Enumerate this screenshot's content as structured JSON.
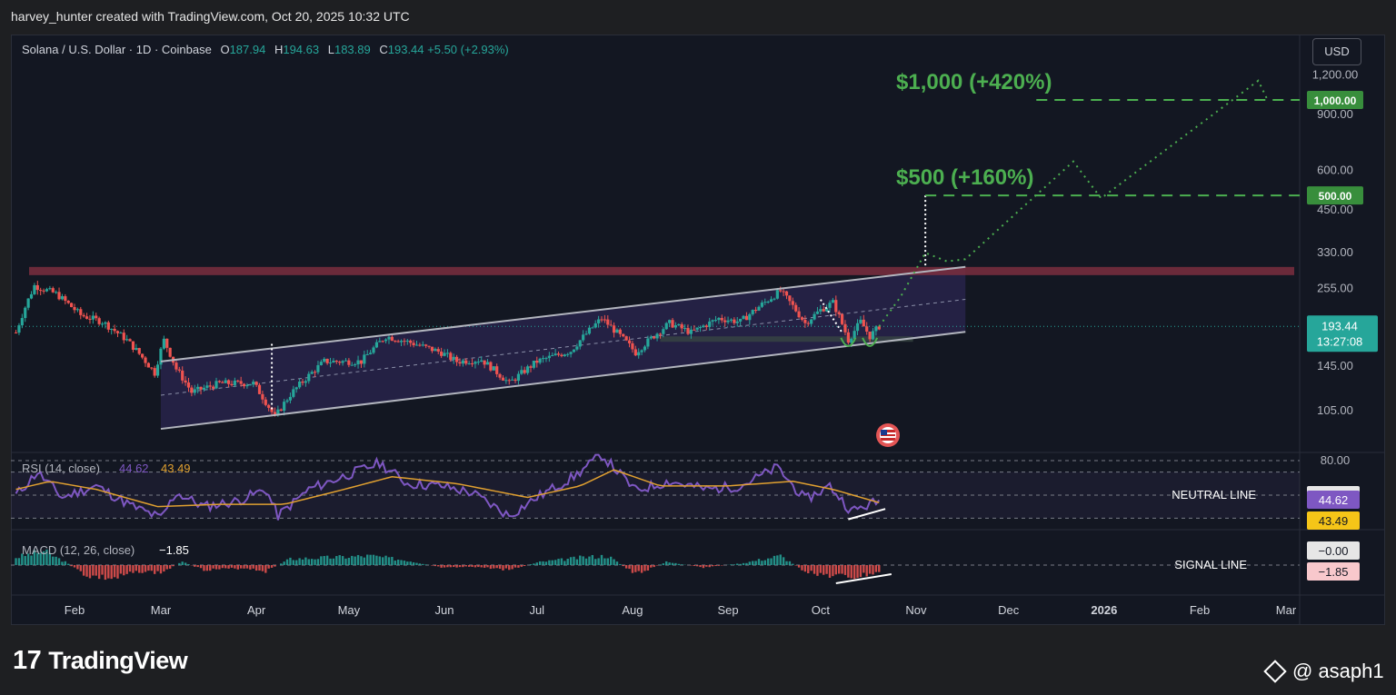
{
  "header": {
    "attribution": "harvey_hunter created with TradingView.com, Oct 20, 2025 10:32 UTC"
  },
  "symbol": {
    "name": "Solana / U.S. Dollar · 1D · Coinbase",
    "open_label": "O",
    "open": "187.94",
    "high_label": "H",
    "high": "194.63",
    "low_label": "L",
    "low": "183.89",
    "close_label": "C",
    "close": "193.44",
    "change": "+5.50 (+2.93%)"
  },
  "currency_button": "USD",
  "footer": {
    "logo_text": "TradingView",
    "logo_mark": "17",
    "watermark": "@ asaph1"
  },
  "colors": {
    "background": "#131722",
    "bull": "#26a69a",
    "bear": "#ef5350",
    "target": "#4caf50",
    "channel_fill": "#2b2650",
    "resistance": "#7b2e3e",
    "rsi": "#7e57c2",
    "rsi_ma": "#e0a030"
  },
  "icons": {
    "us_flag_badge": "flag-icon"
  },
  "chart_data": [
    {
      "type": "candlestick",
      "title": "",
      "price_axis": {
        "scale": "log",
        "ticks": [
          "1,200.00",
          "900.00",
          "600.00",
          "450.00",
          "330.00",
          "255.00",
          "145.00",
          "105.00"
        ],
        "tick_values": [
          1200,
          900,
          600,
          450,
          330,
          255,
          145,
          105
        ]
      },
      "time_axis": {
        "ticks": [
          "Feb",
          "Mar",
          "Apr",
          "May",
          "Jun",
          "Jul",
          "Aug",
          "Sep",
          "Oct",
          "Nov",
          "Dec",
          "2026",
          "Feb",
          "Mar"
        ],
        "tick_dates": [
          "2025-02-01",
          "2025-03-01",
          "2025-04-01",
          "2025-05-01",
          "2025-06-01",
          "2025-07-01",
          "2025-08-01",
          "2025-09-01",
          "2025-10-01",
          "2025-11-01",
          "2025-12-01",
          "2026-01-01",
          "2026-02-01",
          "2026-03-01"
        ]
      },
      "price_path": [
        [
          "2025-01-13",
          185
        ],
        [
          "2025-01-19",
          260
        ],
        [
          "2025-01-26",
          245
        ],
        [
          "2025-02-03",
          210
        ],
        [
          "2025-02-10",
          200
        ],
        [
          "2025-02-18",
          175
        ],
        [
          "2025-02-27",
          138
        ],
        [
          "2025-03-02",
          175
        ],
        [
          "2025-03-06",
          142
        ],
        [
          "2025-03-11",
          120
        ],
        [
          "2025-03-20",
          128
        ],
        [
          "2025-03-31",
          128
        ],
        [
          "2025-04-07",
          100
        ],
        [
          "2025-04-12",
          118
        ],
        [
          "2025-04-23",
          150
        ],
        [
          "2025-05-05",
          150
        ],
        [
          "2025-05-13",
          180
        ],
        [
          "2025-05-21",
          172
        ],
        [
          "2025-05-31",
          160
        ],
        [
          "2025-06-05",
          150
        ],
        [
          "2025-06-13",
          152
        ],
        [
          "2025-06-22",
          128
        ],
        [
          "2025-07-01",
          150
        ],
        [
          "2025-07-12",
          162
        ],
        [
          "2025-07-22",
          205
        ],
        [
          "2025-08-02",
          160
        ],
        [
          "2025-08-13",
          198
        ],
        [
          "2025-08-20",
          185
        ],
        [
          "2025-08-29",
          205
        ],
        [
          "2025-09-05",
          200
        ],
        [
          "2025-09-18",
          250
        ],
        [
          "2025-09-26",
          198
        ],
        [
          "2025-10-01",
          218
        ],
        [
          "2025-10-05",
          230
        ],
        [
          "2025-10-10",
          175
        ],
        [
          "2025-10-14",
          200
        ],
        [
          "2025-10-17",
          180
        ],
        [
          "2025-10-20",
          193.44
        ]
      ],
      "last_price": "193.44",
      "countdown": "13:27:08",
      "projection": [
        [
          "2025-10-20",
          193.44
        ],
        [
          "2025-10-27",
          240
        ],
        [
          "2025-11-04",
          330
        ],
        [
          "2025-11-11",
          310
        ],
        [
          "2025-11-17",
          315
        ],
        [
          "2025-12-22",
          640
        ],
        [
          "2025-12-31",
          490
        ],
        [
          "2026-02-20",
          1150
        ],
        [
          "2026-02-23",
          1000
        ]
      ],
      "target_1": {
        "price": 500,
        "label": "$500 (+160%)",
        "axis_label": "500.00"
      },
      "target_2": {
        "price": 1000,
        "label": "$1,000 (+420%)",
        "axis_label": "1,000.00"
      },
      "resistance_price": 290,
      "channel": {
        "upper": [
          [
            "2025-03-01",
            150
          ],
          [
            "2025-11-17",
            298
          ]
        ],
        "lower": [
          [
            "2025-03-01",
            92
          ],
          [
            "2025-11-17",
            186
          ]
        ]
      },
      "support_zone": {
        "from": "2025-08-10",
        "to": "2025-10-31",
        "low": 173,
        "high": 180
      }
    },
    {
      "type": "line",
      "title": "",
      "indicator": "RSI",
      "params": "(14, close)",
      "rsi_value": "44.62",
      "ma_value": "43.49",
      "levels": [
        "80.00",
        "50.00"
      ],
      "level_values": [
        80,
        70,
        50,
        30
      ],
      "neutral_line_label": "NEUTRAL LINE",
      "rsi_path": [
        [
          "2025-01-13",
          50
        ],
        [
          "2025-01-20",
          70
        ],
        [
          "2025-01-28",
          48
        ],
        [
          "2025-02-08",
          58
        ],
        [
          "2025-02-20",
          40
        ],
        [
          "2025-03-01",
          30
        ],
        [
          "2025-03-06",
          52
        ],
        [
          "2025-03-15",
          40
        ],
        [
          "2025-03-26",
          45
        ],
        [
          "2025-04-04",
          55
        ],
        [
          "2025-04-08",
          32
        ],
        [
          "2025-04-18",
          55
        ],
        [
          "2025-04-28",
          65
        ],
        [
          "2025-05-11",
          78
        ],
        [
          "2025-05-20",
          60
        ],
        [
          "2025-05-31",
          58
        ],
        [
          "2025-06-10",
          52
        ],
        [
          "2025-06-22",
          32
        ],
        [
          "2025-07-01",
          48
        ],
        [
          "2025-07-13",
          66
        ],
        [
          "2025-07-22",
          85
        ],
        [
          "2025-08-02",
          54
        ],
        [
          "2025-08-13",
          62
        ],
        [
          "2025-08-25",
          55
        ],
        [
          "2025-09-05",
          58
        ],
        [
          "2025-09-17",
          74
        ],
        [
          "2025-09-26",
          46
        ],
        [
          "2025-10-04",
          58
        ],
        [
          "2025-10-11",
          36
        ],
        [
          "2025-10-18",
          43
        ],
        [
          "2025-10-20",
          44.62
        ]
      ],
      "ma_path": [
        [
          "2025-01-13",
          55
        ],
        [
          "2025-01-24",
          62
        ],
        [
          "2025-02-08",
          55
        ],
        [
          "2025-02-28",
          40
        ],
        [
          "2025-03-20",
          42
        ],
        [
          "2025-04-10",
          42
        ],
        [
          "2025-04-28",
          54
        ],
        [
          "2025-05-15",
          66
        ],
        [
          "2025-06-05",
          60
        ],
        [
          "2025-06-28",
          48
        ],
        [
          "2025-07-15",
          58
        ],
        [
          "2025-07-26",
          72
        ],
        [
          "2025-08-10",
          58
        ],
        [
          "2025-09-01",
          58
        ],
        [
          "2025-09-22",
          62
        ],
        [
          "2025-10-05",
          55
        ],
        [
          "2025-10-20",
          43.49
        ]
      ]
    },
    {
      "type": "bar",
      "title": "",
      "indicator": "MACD",
      "params": "(12, 26, close)",
      "macd_value": "−1.85",
      "signal_value": "−0.00",
      "signal_line_label": "SIGNAL LINE",
      "histogram_envelope": [
        [
          "2025-01-13",
          10
        ],
        [
          "2025-01-22",
          18
        ],
        [
          "2025-01-29",
          4
        ],
        [
          "2025-02-05",
          -14
        ],
        [
          "2025-02-14",
          -18
        ],
        [
          "2025-02-22",
          -8
        ],
        [
          "2025-03-01",
          -10
        ],
        [
          "2025-03-08",
          4
        ],
        [
          "2025-03-15",
          -6
        ],
        [
          "2025-03-29",
          -4
        ],
        [
          "2025-04-04",
          -8
        ],
        [
          "2025-04-12",
          8
        ],
        [
          "2025-04-26",
          10
        ],
        [
          "2025-05-08",
          12
        ],
        [
          "2025-05-20",
          6
        ],
        [
          "2025-06-01",
          -4
        ],
        [
          "2025-06-10",
          -2
        ],
        [
          "2025-06-22",
          -6
        ],
        [
          "2025-07-02",
          4
        ],
        [
          "2025-07-16",
          10
        ],
        [
          "2025-07-24",
          12
        ],
        [
          "2025-08-02",
          -12
        ],
        [
          "2025-08-12",
          4
        ],
        [
          "2025-08-24",
          -3
        ],
        [
          "2025-09-05",
          2
        ],
        [
          "2025-09-18",
          12
        ],
        [
          "2025-09-26",
          -8
        ],
        [
          "2025-10-04",
          -14
        ],
        [
          "2025-10-12",
          -16
        ],
        [
          "2025-10-20",
          -9
        ]
      ]
    }
  ]
}
